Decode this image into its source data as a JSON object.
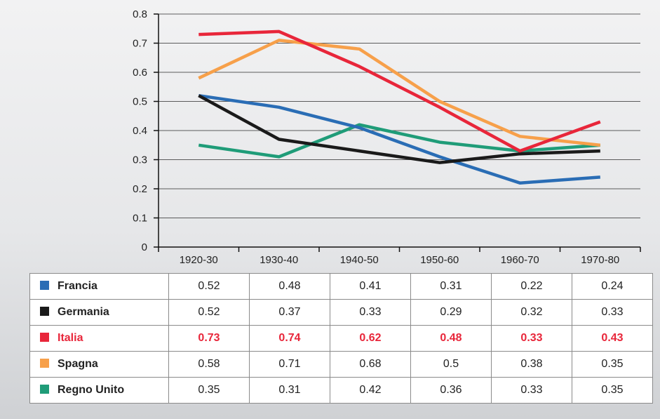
{
  "chart_data": {
    "type": "line",
    "categories": [
      "1920-30",
      "1930-40",
      "1940-50",
      "1950-60",
      "1960-70",
      "1970-80"
    ],
    "ylim": [
      0,
      0.8
    ],
    "yticks": [
      "0",
      "0.1",
      "0.2",
      "0.3",
      "0.4",
      "0.5",
      "0.6",
      "0.7",
      "0.8"
    ],
    "grid": true,
    "legend": "table-below",
    "series": [
      {
        "name": "Francia",
        "color": "#2a6db5",
        "values": [
          0.52,
          0.48,
          0.41,
          0.31,
          0.22,
          0.24
        ],
        "labels": [
          "0.52",
          "0.48",
          "0.41",
          "0.31",
          "0.22",
          "0.24"
        ]
      },
      {
        "name": "Germania",
        "color": "#1a1a1a",
        "values": [
          0.52,
          0.37,
          0.33,
          0.29,
          0.32,
          0.33
        ],
        "labels": [
          "0.52",
          "0.37",
          "0.33",
          "0.29",
          "0.32",
          "0.33"
        ]
      },
      {
        "name": "Italia",
        "color": "#e8263a",
        "highlight": true,
        "values": [
          0.73,
          0.74,
          0.62,
          0.48,
          0.33,
          0.43
        ],
        "labels": [
          "0.73",
          "0.74",
          "0.62",
          "0.48",
          "0.33",
          "0.43"
        ]
      },
      {
        "name": "Spagna",
        "color": "#f7a04a",
        "values": [
          0.58,
          0.71,
          0.68,
          0.5,
          0.38,
          0.35
        ],
        "labels": [
          "0.58",
          "0.71",
          "0.68",
          "0.5",
          "0.38",
          "0.35"
        ]
      },
      {
        "name": "Regno Unito",
        "color": "#1f9c78",
        "values": [
          0.35,
          0.31,
          0.42,
          0.36,
          0.33,
          0.35
        ],
        "labels": [
          "0.35",
          "0.31",
          "0.42",
          "0.36",
          "0.33",
          "0.35"
        ]
      }
    ]
  }
}
